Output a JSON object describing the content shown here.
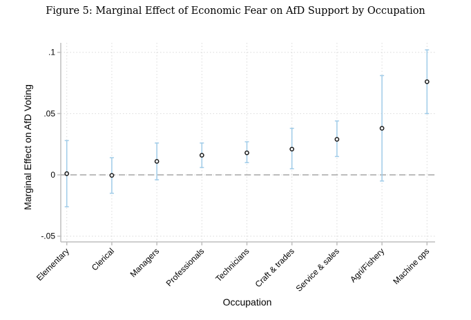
{
  "chart_data": {
    "type": "scatter",
    "title": "Figure 5: Marginal Effect of Economic Fear on AfD Support by Occupation",
    "xlabel": "Occupation",
    "ylabel": "Marginal Effect on AfD Voting",
    "ylim": [
      -0.05,
      0.1
    ],
    "yticks": [
      -0.05,
      0,
      0.05,
      0.1
    ],
    "ytick_labels": [
      "-.05",
      "0",
      ".05",
      ".1"
    ],
    "grid": true,
    "reference_line": 0,
    "categories": [
      "Elementary",
      "Clerical",
      "Managers",
      "Professionals",
      "Technicians",
      "Craft & trades",
      "Service & sales",
      "Agri/Fishery",
      "Machine ops"
    ],
    "values": [
      0.001,
      -0.0004,
      0.011,
      0.016,
      0.018,
      0.021,
      0.029,
      0.038,
      0.076
    ],
    "ci_lower": [
      -0.026,
      -0.015,
      -0.004,
      0.006,
      0.01,
      0.005,
      0.015,
      -0.005,
      0.05
    ],
    "ci_upper": [
      0.028,
      0.014,
      0.026,
      0.026,
      0.027,
      0.038,
      0.044,
      0.081,
      0.102
    ],
    "colors": {
      "ci": "#9fcbe8",
      "point": "#1a1a1a",
      "grid": "#d9d9d9",
      "reference": "#a6a6a6",
      "axis": "#bdbdbd"
    }
  }
}
